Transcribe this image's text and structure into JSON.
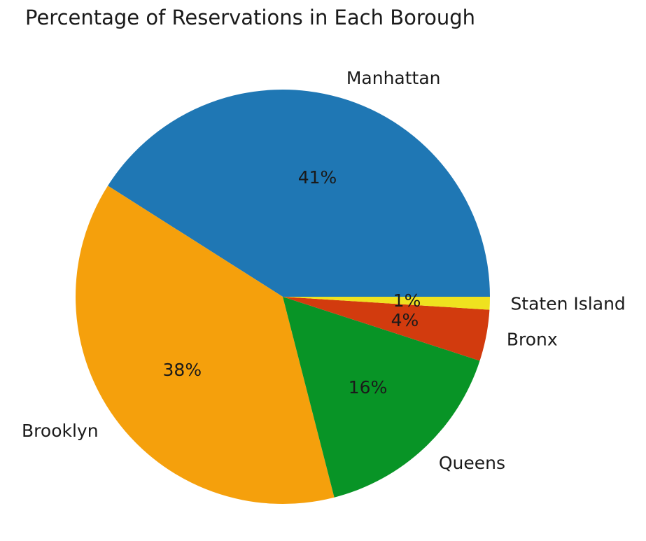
{
  "chart_data": {
    "type": "pie",
    "title": "Percentage of Reservations in Each Borough",
    "start_angle_deg": 0,
    "direction": "counterclockwise",
    "slices": [
      {
        "label": "Manhattan",
        "value": 41,
        "pct_label": "41%",
        "color": "#1f77b4"
      },
      {
        "label": "Brooklyn",
        "value": 38,
        "pct_label": "38%",
        "color": "#f5a00c"
      },
      {
        "label": "Queens",
        "value": 16,
        "pct_label": "16%",
        "color": "#089426"
      },
      {
        "label": "Bronx",
        "value": 4,
        "pct_label": "4%",
        "color": "#d23b0e"
      },
      {
        "label": "Staten Island",
        "value": 1,
        "pct_label": "1%",
        "color": "#efe21f"
      }
    ]
  }
}
